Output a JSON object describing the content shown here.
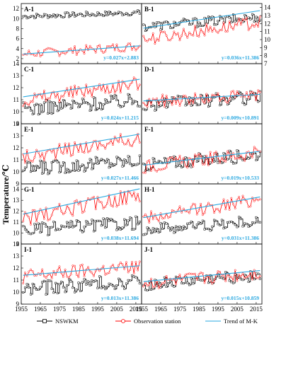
{
  "figure": {
    "ylabel": "Temperature/℃",
    "xticks": [
      1955,
      1965,
      1975,
      1985,
      1995,
      2005,
      2015
    ],
    "legend": [
      {
        "name": "NSWKM",
        "color": "#000000",
        "marker": "square"
      },
      {
        "name": "Observation station",
        "color": "#ff0000",
        "marker": "circle"
      },
      {
        "name": "Trend of M-K",
        "color": "#29a8e0",
        "marker": "none"
      }
    ]
  },
  "chart_data": [
    {
      "panel": "A-1",
      "type": "line",
      "x_range": [
        1955,
        2018
      ],
      "ylim": [
        1,
        13
      ],
      "yticks": [
        2,
        4,
        6,
        8,
        10,
        12
      ],
      "axis_side": "left",
      "equation": "y=0.027x+2.883",
      "trend": {
        "slope": 0.027,
        "intercept": 2.883
      },
      "series": [
        {
          "name": "NSWKM",
          "mean": 10.8,
          "amp": 0.5,
          "slope": 0.012
        },
        {
          "name": "Observation station",
          "mean": 3.7,
          "amp": 0.9,
          "slope": 0.027
        }
      ]
    },
    {
      "panel": "B-1",
      "type": "line",
      "x_range": [
        1955,
        2018
      ],
      "ylim": [
        7,
        14.5
      ],
      "yticks": [
        7,
        8,
        9,
        10,
        11,
        12,
        13,
        14
      ],
      "axis_side": "right",
      "equation": "y=0.036x+11.386",
      "trend": {
        "slope": 0.036,
        "intercept": 11.386
      },
      "series": [
        {
          "name": "NSWKM",
          "mean": 12.2,
          "amp": 0.6,
          "slope": 0.02
        },
        {
          "name": "Observation station",
          "mean": 11.1,
          "amp": 0.8,
          "slope": 0.036
        }
      ]
    },
    {
      "panel": "C-1",
      "type": "line",
      "x_range": [
        1955,
        2018
      ],
      "ylim": [
        9,
        14
      ],
      "yticks": [
        9,
        10,
        11,
        12,
        13,
        14
      ],
      "axis_side": "left",
      "equation": "y=0.024x+11.215",
      "trend": {
        "slope": 0.024,
        "intercept": 11.215
      },
      "series": [
        {
          "name": "NSWKM",
          "mean": 10.6,
          "amp": 0.6,
          "slope": 0.012
        },
        {
          "name": "Observation station",
          "mean": 11.7,
          "amp": 0.6,
          "slope": 0.024
        }
      ]
    },
    {
      "panel": "D-1",
      "type": "line",
      "x_range": [
        1955,
        2018
      ],
      "ylim": [
        9,
        14
      ],
      "yticks": [],
      "axis_side": "none",
      "equation": "y=0.009x+10.891",
      "trend": {
        "slope": 0.009,
        "intercept": 10.891
      },
      "series": [
        {
          "name": "NSWKM",
          "mean": 10.9,
          "amp": 0.55,
          "slope": 0.01
        },
        {
          "name": "Observation station",
          "mean": 11.1,
          "amp": 0.5,
          "slope": 0.009
        }
      ]
    },
    {
      "panel": "E-1",
      "type": "line",
      "x_range": [
        1955,
        2018
      ],
      "ylim": [
        9,
        14
      ],
      "yticks": [
        9,
        10,
        11,
        12,
        13,
        14
      ],
      "axis_side": "left",
      "equation": "y=0.027x+11.466",
      "trend": {
        "slope": 0.027,
        "intercept": 11.466
      },
      "series": [
        {
          "name": "NSWKM",
          "mean": 10.6,
          "amp": 0.6,
          "slope": 0.012
        },
        {
          "name": "Observation station",
          "mean": 12.0,
          "amp": 0.6,
          "slope": 0.027
        }
      ]
    },
    {
      "panel": "F-1",
      "type": "line",
      "x_range": [
        1955,
        2018
      ],
      "ylim": [
        9,
        14
      ],
      "yticks": [],
      "axis_side": "none",
      "equation": "y=0.019x+10.533",
      "trend": {
        "slope": 0.019,
        "intercept": 10.533
      },
      "series": [
        {
          "name": "NSWKM",
          "mean": 11.0,
          "amp": 0.55,
          "slope": 0.015
        },
        {
          "name": "Observation station",
          "mean": 11.0,
          "amp": 0.55,
          "slope": 0.019
        }
      ]
    },
    {
      "panel": "G-1",
      "type": "line",
      "x_range": [
        1955,
        2018
      ],
      "ylim": [
        9,
        14.5
      ],
      "yticks": [
        9,
        10,
        11,
        12,
        13,
        14
      ],
      "axis_side": "left",
      "equation": "y=0.038x+11.694",
      "trend": {
        "slope": 0.038,
        "intercept": 11.694
      },
      "series": [
        {
          "name": "NSWKM",
          "mean": 10.6,
          "amp": 0.6,
          "slope": 0.012
        },
        {
          "name": "Observation station",
          "mean": 12.4,
          "amp": 0.7,
          "slope": 0.038
        }
      ]
    },
    {
      "panel": "H-1",
      "type": "line",
      "x_range": [
        1955,
        2018
      ],
      "ylim": [
        9,
        14.5
      ],
      "yticks": [],
      "axis_side": "none",
      "equation": "y=0.031x+11.386",
      "trend": {
        "slope": 0.031,
        "intercept": 11.386
      },
      "series": [
        {
          "name": "NSWKM",
          "mean": 10.7,
          "amp": 0.55,
          "slope": 0.012
        },
        {
          "name": "Observation station",
          "mean": 12.2,
          "amp": 0.6,
          "slope": 0.031
        }
      ]
    },
    {
      "panel": "I-1",
      "type": "line",
      "x_range": [
        1955,
        2018
      ],
      "ylim": [
        9,
        14
      ],
      "yticks": [
        9,
        10,
        11,
        12,
        13,
        14
      ],
      "axis_side": "left",
      "equation": "y=0.013x+11.386",
      "trend": {
        "slope": 0.013,
        "intercept": 11.386
      },
      "series": [
        {
          "name": "NSWKM",
          "mean": 10.6,
          "amp": 0.6,
          "slope": 0.012
        },
        {
          "name": "Observation station",
          "mean": 11.7,
          "amp": 0.6,
          "slope": 0.013
        }
      ]
    },
    {
      "panel": "J-1",
      "type": "line",
      "x_range": [
        1955,
        2018
      ],
      "ylim": [
        9,
        14
      ],
      "yticks": [],
      "axis_side": "none",
      "equation": "y=0.015x+10.859",
      "trend": {
        "slope": 0.015,
        "intercept": 10.859
      },
      "series": [
        {
          "name": "NSWKM",
          "mean": 11.0,
          "amp": 0.5,
          "slope": 0.014
        },
        {
          "name": "Observation station",
          "mean": 11.1,
          "amp": 0.55,
          "slope": 0.015
        }
      ]
    }
  ]
}
